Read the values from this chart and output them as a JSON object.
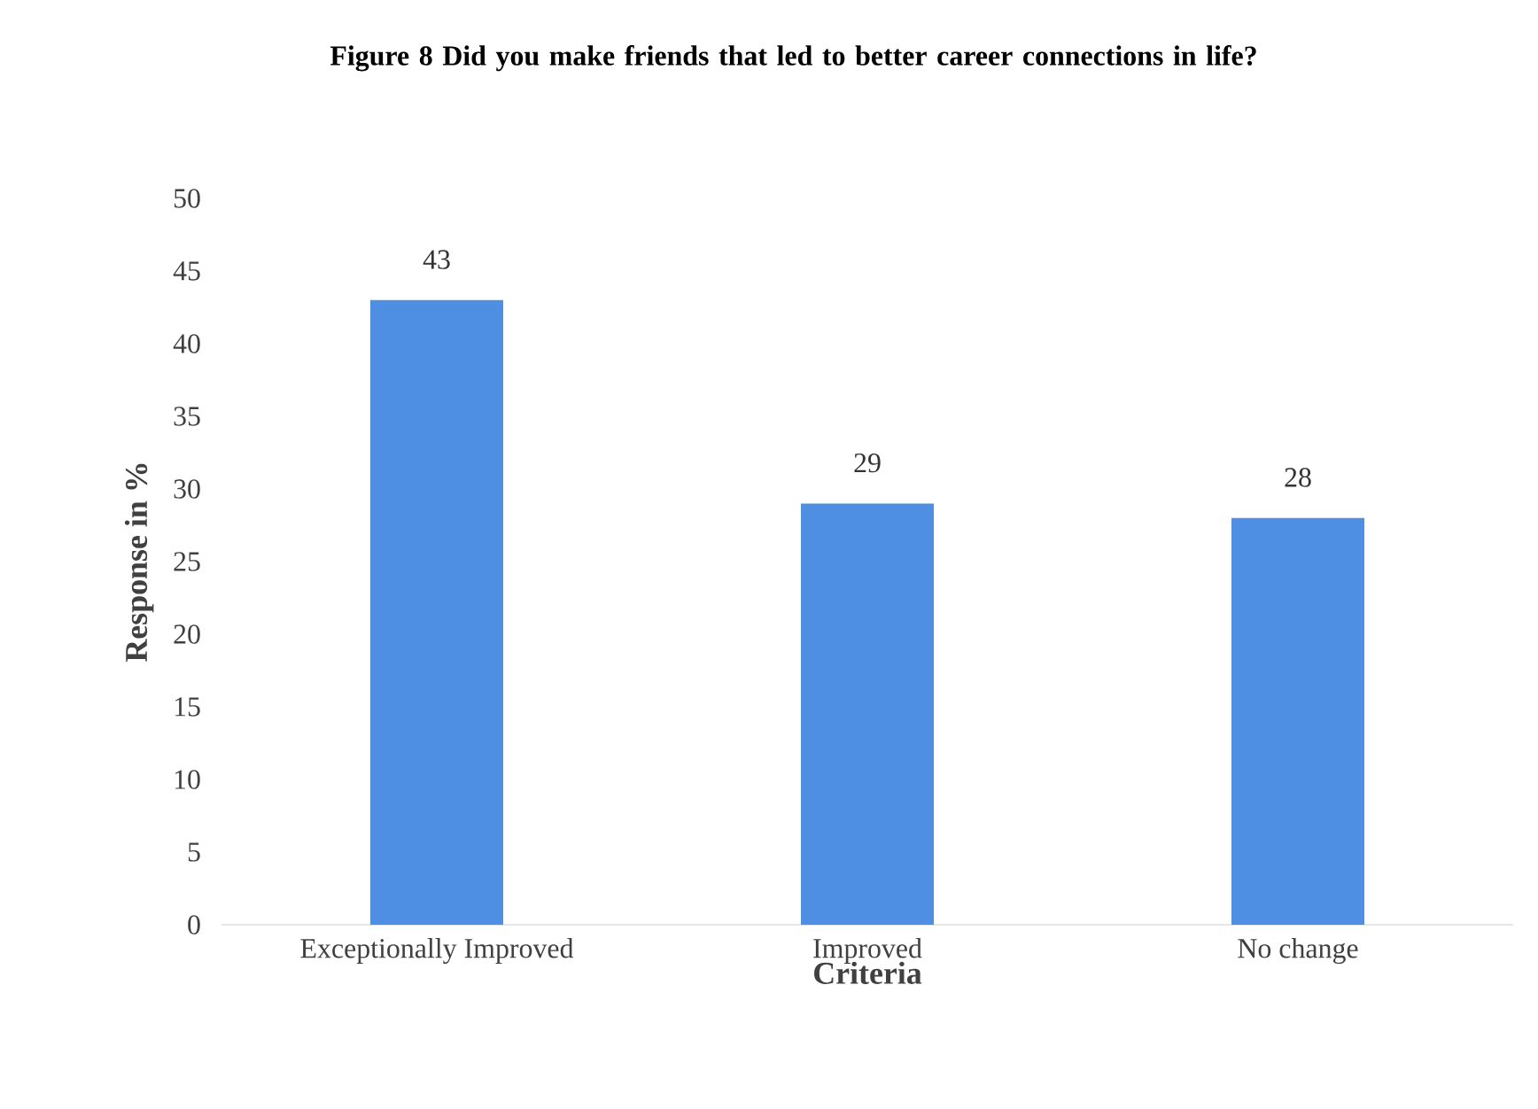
{
  "chart_data": {
    "type": "bar",
    "title": "Figure 8 Did you make friends that led to better career connections in life?",
    "xlabel": "Criteria",
    "ylabel": "Response in %",
    "categories": [
      "Exceptionally Improved",
      "Improved",
      "No change"
    ],
    "values": [
      43,
      29,
      28
    ],
    "color": "#4f8fe3",
    "ylim": [
      0,
      50
    ],
    "yticks": [
      0,
      5,
      10,
      15,
      20,
      25,
      30,
      35,
      40,
      45,
      50
    ],
    "data_labels": true
  }
}
